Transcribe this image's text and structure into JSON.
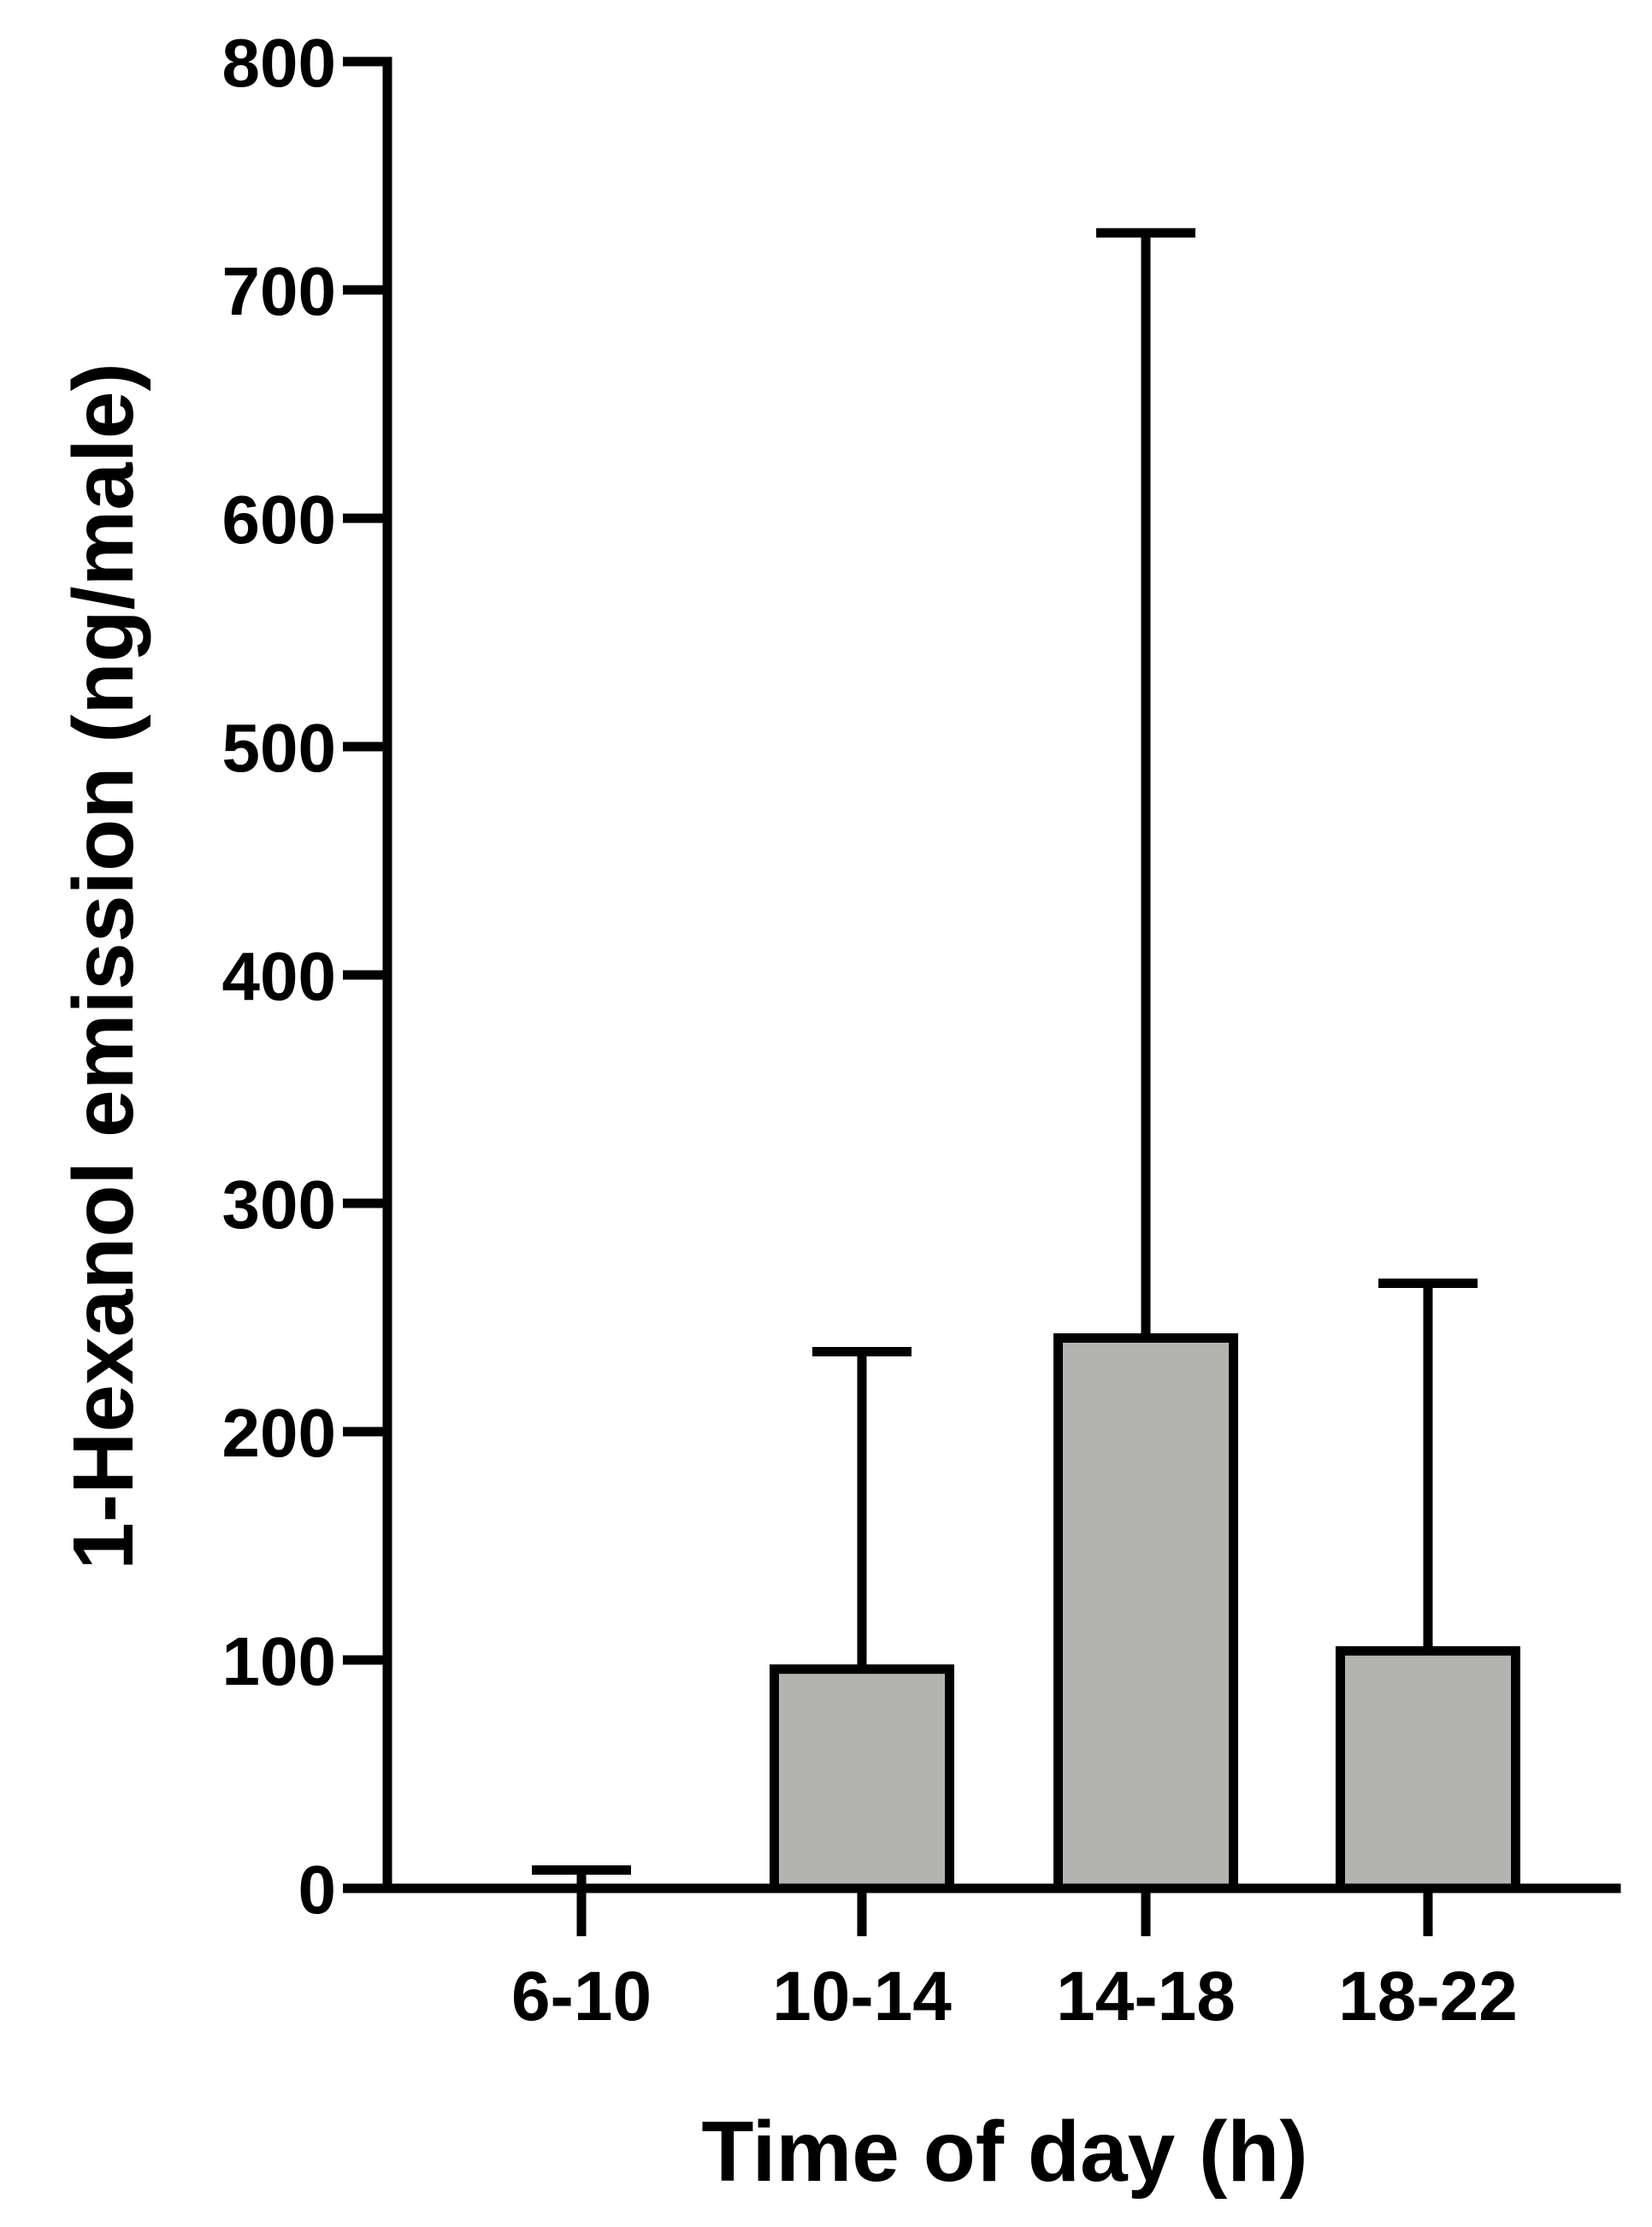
{
  "chart_data": {
    "type": "bar",
    "title": "",
    "xlabel": "Time of day (h)",
    "ylabel": "1-Hexanol emission (ng/male)",
    "categories": [
      "6-10",
      "10-14",
      "14-18",
      "18-22"
    ],
    "values": [
      0,
      96,
      241,
      104
    ],
    "error_upper": [
      8,
      235,
      725,
      265
    ],
    "ylim": [
      0,
      800
    ],
    "yticks": [
      0,
      100,
      200,
      300,
      400,
      500,
      600,
      700,
      800
    ],
    "ytick_labels": [
      "0",
      "100",
      "200",
      "300",
      "400",
      "500",
      "600",
      "700",
      "800"
    ],
    "grid": false,
    "legend": "none",
    "bar_color": "#b3b3b1",
    "edge_color": "#000000"
  }
}
